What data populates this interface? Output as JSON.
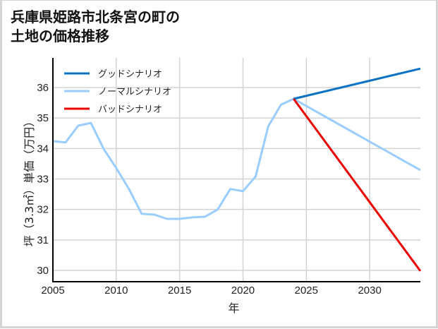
{
  "title": "兵庫県姫路市北条宮の町の\n土地の価格推移",
  "chart_data": {
    "type": "line",
    "title": "兵庫県姫路市北条宮の町の土地の価格推移",
    "xlabel": "年",
    "ylabel": "坪（3.3㎡）単価（万円）",
    "xlim": [
      2005,
      2034
    ],
    "ylim": [
      29.6,
      37.0
    ],
    "xticks": [
      2005,
      2010,
      2015,
      2020,
      2025,
      2030
    ],
    "yticks": [
      30,
      31,
      32,
      33,
      34,
      35,
      36
    ],
    "grid": true,
    "legend_position": "upper left",
    "series": [
      {
        "name": "グッドシナリオ",
        "color": "#0a72c4",
        "x": [
          2024,
          2034
        ],
        "values": [
          35.63,
          36.62
        ]
      },
      {
        "name": "ノーマルシナリオ",
        "color": "#99ccff",
        "x": [
          2005,
          2006,
          2007,
          2008,
          2009,
          2010,
          2011,
          2012,
          2013,
          2014,
          2015,
          2016,
          2017,
          2018,
          2019,
          2020,
          2021,
          2022,
          2023,
          2024,
          2034
        ],
        "values": [
          34.24,
          34.2,
          34.75,
          34.84,
          33.99,
          33.36,
          32.67,
          31.86,
          31.83,
          31.69,
          31.69,
          31.74,
          31.76,
          32.0,
          32.67,
          32.6,
          33.08,
          34.73,
          35.44,
          35.63,
          33.29
        ]
      },
      {
        "name": "バッドシナリオ",
        "color": "#ee0000",
        "x": [
          2024,
          2034
        ],
        "values": [
          35.63,
          29.98
        ]
      }
    ]
  }
}
